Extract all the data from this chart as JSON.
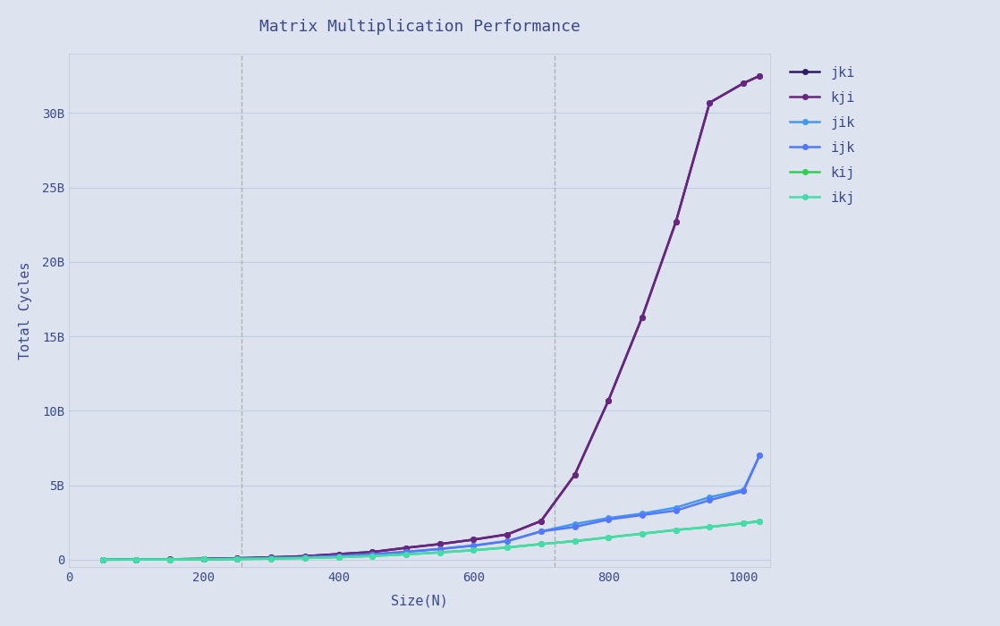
{
  "title": "Matrix Multiplication Performance",
  "xlabel": "Size(N)",
  "ylabel": "Total Cycles",
  "fig_background_color": "#dde3ef",
  "plot_background": "#dce3ef",
  "vlines": [
    256,
    720
  ],
  "xlim": [
    0,
    1040
  ],
  "ylim": [
    -500000000.0,
    34000000000.0
  ],
  "yticks": [
    0,
    5000000000,
    10000000000,
    15000000000,
    20000000000,
    25000000000,
    30000000000
  ],
  "ytick_labels": [
    "0",
    "5B",
    "10B",
    "15B",
    "20B",
    "25B",
    "30B"
  ],
  "xticks": [
    0,
    200,
    400,
    600,
    800,
    1000
  ],
  "series": {
    "jki": {
      "color": "#2d1b69",
      "marker": "o",
      "markersize": 4,
      "linewidth": 1.8,
      "x": [
        50,
        100,
        150,
        200,
        250,
        300,
        350,
        400,
        450,
        500,
        550,
        600,
        650,
        700,
        750,
        800,
        850,
        900,
        950,
        1000,
        1024
      ],
      "y": [
        5000000,
        15000000,
        30000000,
        60000000,
        100000000,
        160000000,
        240000000,
        380000000,
        520000000,
        800000000,
        1050000000,
        1350000000,
        1700000000,
        2600000000,
        5700000000,
        10700000000,
        16300000000,
        22700000000,
        30700000000,
        32000000000,
        32500000000
      ]
    },
    "kji": {
      "color": "#6a2580",
      "marker": "o",
      "markersize": 4,
      "linewidth": 1.8,
      "x": [
        50,
        100,
        150,
        200,
        250,
        300,
        350,
        400,
        450,
        500,
        550,
        600,
        650,
        700,
        750,
        800,
        850,
        900,
        950,
        1000,
        1024
      ],
      "y": [
        5000000,
        15000000,
        30000000,
        60000000,
        100000000,
        160000000,
        240000000,
        380000000,
        520000000,
        800000000,
        1050000000,
        1350000000,
        1700000000,
        2600000000,
        5700000000,
        10700000000,
        16300000000,
        22700000000,
        30700000000,
        32000000000,
        32500000000
      ]
    },
    "jik": {
      "color": "#4499ee",
      "marker": "o",
      "markersize": 4,
      "linewidth": 1.8,
      "x": [
        50,
        100,
        150,
        200,
        250,
        300,
        350,
        400,
        450,
        500,
        550,
        600,
        650,
        700,
        750,
        800,
        850,
        900,
        950,
        1000,
        1024
      ],
      "y": [
        3000000,
        8000000,
        18000000,
        35000000,
        65000000,
        110000000,
        165000000,
        250000000,
        370000000,
        530000000,
        720000000,
        950000000,
        1250000000,
        1900000000,
        2400000000,
        2800000000,
        3100000000,
        3500000000,
        4200000000,
        4700000000,
        7000000000
      ]
    },
    "ijk": {
      "color": "#5577ff",
      "marker": "o",
      "markersize": 4,
      "linewidth": 1.8,
      "x": [
        50,
        100,
        150,
        200,
        250,
        300,
        350,
        400,
        450,
        500,
        550,
        600,
        650,
        700,
        750,
        800,
        850,
        900,
        950,
        1000,
        1024
      ],
      "y": [
        3000000,
        8000000,
        18000000,
        35000000,
        65000000,
        110000000,
        165000000,
        250000000,
        370000000,
        530000000,
        720000000,
        950000000,
        1250000000,
        1900000000,
        2200000000,
        2700000000,
        3000000000,
        3300000000,
        4000000000,
        4600000000,
        7000000000
      ]
    },
    "kij": {
      "color": "#33cc55",
      "marker": "o",
      "markersize": 4,
      "linewidth": 1.8,
      "x": [
        50,
        100,
        150,
        200,
        250,
        300,
        350,
        400,
        450,
        500,
        550,
        600,
        650,
        700,
        750,
        800,
        850,
        900,
        950,
        1000,
        1024
      ],
      "y": [
        2000000,
        6000000,
        14000000,
        25000000,
        45000000,
        75000000,
        115000000,
        170000000,
        250000000,
        360000000,
        490000000,
        640000000,
        820000000,
        1050000000,
        1250000000,
        1500000000,
        1750000000,
        2000000000,
        2200000000,
        2450000000,
        2600000000
      ]
    },
    "ikj": {
      "color": "#44ddaa",
      "marker": "o",
      "markersize": 4,
      "linewidth": 1.8,
      "x": [
        50,
        100,
        150,
        200,
        250,
        300,
        350,
        400,
        450,
        500,
        550,
        600,
        650,
        700,
        750,
        800,
        850,
        900,
        950,
        1000,
        1024
      ],
      "y": [
        2000000,
        6000000,
        14000000,
        25000000,
        45000000,
        75000000,
        115000000,
        170000000,
        250000000,
        360000000,
        490000000,
        640000000,
        820000000,
        1050000000,
        1250000000,
        1500000000,
        1750000000,
        2000000000,
        2200000000,
        2450000000,
        2550000000
      ]
    }
  },
  "legend_order": [
    "jki",
    "kji",
    "jik",
    "ijk",
    "kij",
    "ikj"
  ],
  "title_fontsize": 13,
  "label_fontsize": 11,
  "tick_fontsize": 10,
  "legend_fontsize": 11,
  "tick_color": "#3a4a8a",
  "label_color": "#3a4a8a",
  "title_color": "#3a4a8a"
}
